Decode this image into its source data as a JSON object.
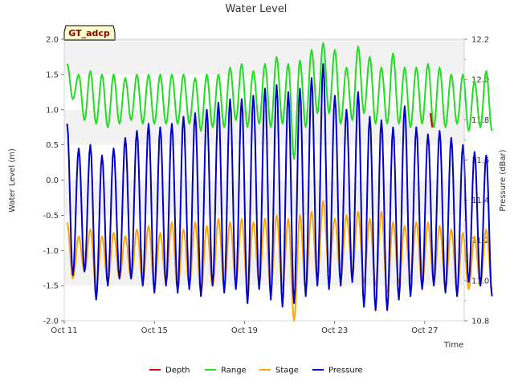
{
  "chart_data": {
    "type": "line",
    "title": "Water Level",
    "station_label": "GT_adcp",
    "xlabel": "Time",
    "ylabel_left": "Water Level (m)",
    "ylabel_right": "Pressure (dBar)",
    "x_range": [
      "2023-10-11",
      "2023-10-28T18:00"
    ],
    "ylim_left": [
      -2.0,
      2.0
    ],
    "ylim_right": [
      10.8,
      12.2
    ],
    "x_ticks": [
      "Oct 11",
      "Oct 15",
      "Oct 19",
      "Oct 23",
      "Oct 27"
    ],
    "y_ticks_left": [
      "-2.0",
      "-1.5",
      "-1.0",
      "-0.5",
      "0.0",
      "0.5",
      "1.0",
      "1.5",
      "2.0"
    ],
    "y_ticks_right": [
      "10.8",
      "11.0",
      "11.2",
      "11.4",
      "11.6",
      "11.8",
      "12.0",
      "12.2"
    ],
    "grid": "horizontal bands",
    "legend_position": "bottom",
    "sampling": "estimated semidiurnal extremes read from the plot; high/low alternate",
    "series": [
      {
        "name": "Depth",
        "color": "#cc0000",
        "axis": "left",
        "points": [
          [
            "2023-10-27T06:00",
            0.95
          ],
          [
            "2023-10-27T08:00",
            0.75
          ]
        ]
      },
      {
        "name": "Range",
        "color": "#22dd22",
        "axis": "left",
        "start": "2023-10-11T03:00",
        "interval_hours": 6.2,
        "values": [
          1.65,
          1.15,
          1.5,
          0.85,
          1.55,
          0.8,
          1.5,
          0.75,
          1.5,
          0.8,
          1.45,
          0.85,
          1.5,
          0.8,
          1.5,
          0.8,
          1.5,
          0.8,
          1.5,
          0.8,
          1.5,
          0.8,
          1.45,
          0.7,
          1.5,
          0.75,
          1.5,
          0.75,
          1.6,
          0.85,
          1.65,
          0.75,
          1.55,
          0.8,
          1.65,
          0.75,
          1.75,
          0.8,
          1.65,
          0.3,
          1.7,
          0.75,
          1.85,
          0.95,
          1.95,
          0.95,
          1.85,
          0.8,
          1.6,
          0.85,
          1.9,
          0.95,
          1.75,
          0.8,
          1.6,
          0.8,
          1.8,
          0.8,
          1.6,
          0.75,
          1.6,
          0.8,
          1.65,
          0.75,
          1.6,
          0.75,
          1.5,
          0.8,
          1.5,
          0.7,
          1.4,
          0.75,
          1.55,
          0.7
        ]
      },
      {
        "name": "Stage",
        "color": "#ffa500",
        "axis": "left",
        "start": "2023-10-11T03:00",
        "interval_hours": 6.2,
        "values": [
          -0.6,
          -1.4,
          -0.8,
          -1.3,
          -0.7,
          -1.55,
          -0.8,
          -1.45,
          -0.75,
          -1.4,
          -0.8,
          -1.4,
          -0.7,
          -1.45,
          -0.65,
          -1.5,
          -0.75,
          -1.45,
          -0.6,
          -1.55,
          -0.7,
          -1.5,
          -0.6,
          -1.6,
          -0.65,
          -1.5,
          -0.55,
          -1.5,
          -0.6,
          -1.45,
          -0.55,
          -1.55,
          -0.6,
          -1.45,
          -0.55,
          -1.55,
          -0.5,
          -1.55,
          -0.55,
          -2.0,
          -0.5,
          -1.55,
          -0.45,
          -1.4,
          -0.3,
          -1.3,
          -0.55,
          -1.4,
          -0.5,
          -1.3,
          -0.45,
          -1.45,
          -0.55,
          -1.5,
          -0.45,
          -1.6,
          -0.6,
          -1.45,
          -0.65,
          -1.4,
          -0.6,
          -1.5,
          -0.6,
          -1.45,
          -0.65,
          -1.5,
          -0.7,
          -1.55,
          -0.75,
          -1.55,
          -0.8,
          -1.5,
          -0.7,
          -1.55
        ]
      },
      {
        "name": "Pressure",
        "color": "#0000cc",
        "axis": "left",
        "start": "2023-10-11T03:00",
        "interval_hours": 6.2,
        "values": [
          0.8,
          -1.35,
          0.45,
          -1.3,
          0.5,
          -1.7,
          0.35,
          -1.5,
          0.45,
          -1.4,
          0.6,
          -1.4,
          0.7,
          -1.5,
          0.8,
          -1.6,
          0.75,
          -1.5,
          0.8,
          -1.6,
          0.9,
          -1.55,
          0.95,
          -1.65,
          1.0,
          -1.5,
          1.1,
          -1.6,
          1.15,
          -1.55,
          1.15,
          -1.75,
          1.2,
          -1.55,
          1.3,
          -1.7,
          1.35,
          -1.8,
          1.25,
          -1.75,
          1.3,
          -1.65,
          1.45,
          -1.5,
          1.65,
          -1.55,
          1.2,
          -1.5,
          1.0,
          -1.45,
          1.25,
          -1.8,
          0.9,
          -1.85,
          0.85,
          -1.85,
          0.75,
          -1.7,
          1.05,
          -1.65,
          0.75,
          -1.55,
          0.65,
          -1.5,
          0.7,
          -1.6,
          0.6,
          -1.65,
          0.5,
          -1.45,
          0.4,
          -1.5,
          0.35,
          -1.65
        ]
      }
    ]
  }
}
